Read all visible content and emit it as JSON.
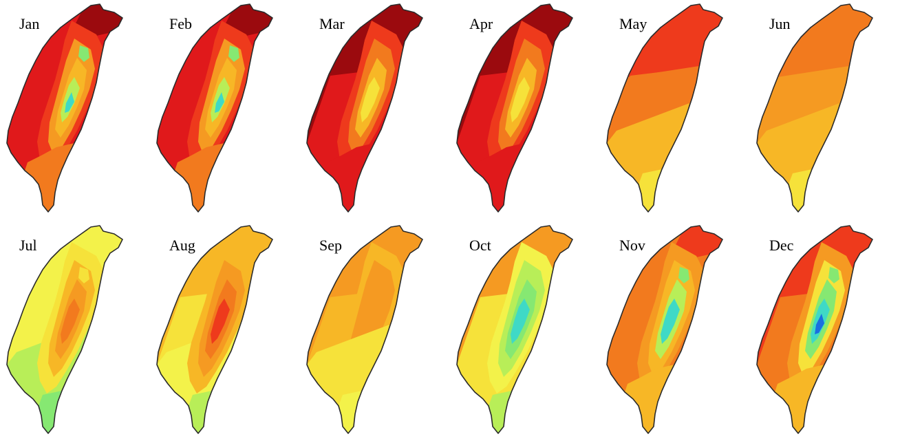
{
  "panels": [
    {
      "label": "Jan",
      "scheme": "warm-cold-center"
    },
    {
      "label": "Feb",
      "scheme": "warm-cold-center"
    },
    {
      "label": "Mar",
      "scheme": "hot-yellow-center"
    },
    {
      "label": "Apr",
      "scheme": "hot-yellow-center"
    },
    {
      "label": "May",
      "scheme": "orange-bands"
    },
    {
      "label": "Jun",
      "scheme": "orange-yellow-bands"
    },
    {
      "label": "Jul",
      "scheme": "yellow-green-hot-center"
    },
    {
      "label": "Aug",
      "scheme": "yellow-hot-center"
    },
    {
      "label": "Sep",
      "scheme": "orange-yellow"
    },
    {
      "label": "Oct",
      "scheme": "yellow-green-cyan-center"
    },
    {
      "label": "Nov",
      "scheme": "orange-cyan-center"
    },
    {
      "label": "Dec",
      "scheme": "orange-blue-center"
    }
  ],
  "colors": {
    "darkred": "#9b0a0e",
    "red": "#e0191b",
    "redorange": "#ee3a1c",
    "orange": "#f27a1e",
    "lightorange": "#f59a22",
    "amber": "#f7b726",
    "yellow": "#f6e23a",
    "paleyellow": "#f3f24a",
    "lime": "#b8ee58",
    "green": "#86e872",
    "cyan": "#3fd9c6",
    "blue": "#1a6fe0",
    "outline": "#2a2a2a"
  }
}
